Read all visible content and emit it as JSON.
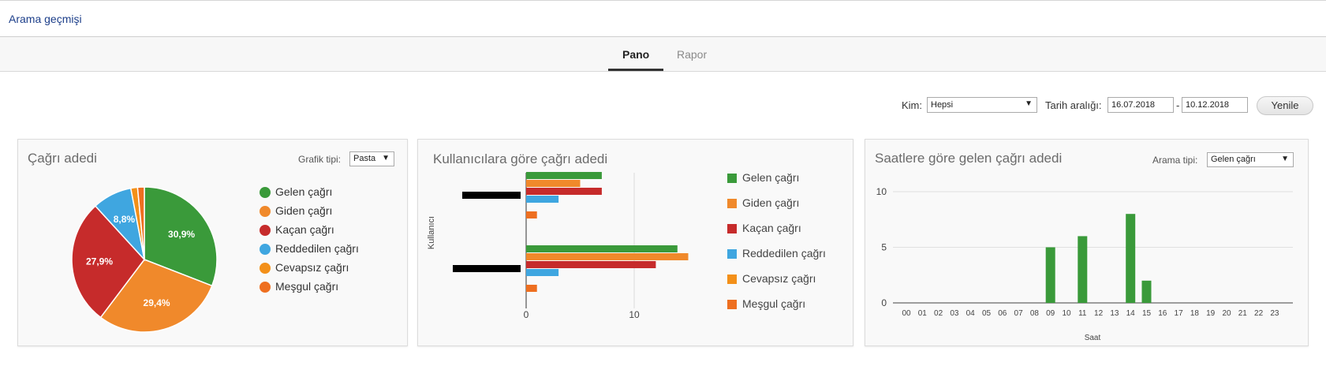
{
  "header": {
    "title": "Arama geçmişi"
  },
  "tabs": [
    {
      "label": "Pano",
      "active": true
    },
    {
      "label": "Rapor",
      "active": false
    }
  ],
  "filters": {
    "who_label": "Kim:",
    "who_value": "Hepsi",
    "date_label": "Tarih aralığı:",
    "date_from": "16.07.2018",
    "date_sep": "-",
    "date_to": "10.12.2018",
    "refresh_label": "Yenile"
  },
  "colors": {
    "gelen": "#3a9a3a",
    "giden": "#f0892b",
    "kacan": "#c62b2b",
    "reddedilen": "#3fa6e0",
    "cevapsiz": "#f39019",
    "mesgul": "#ee6f20"
  },
  "card1": {
    "title": "Çağrı adedi",
    "chart_type_label": "Grafik tipi:",
    "chart_type_value": "Pasta",
    "legend": [
      "Gelen çağrı",
      "Giden çağrı",
      "Kaçan çağrı",
      "Reddedilen çağrı",
      "Cevapsız çağrı",
      "Meşgul çağrı"
    ]
  },
  "card2": {
    "title": "Kullanıcılara göre çağrı adedi",
    "legend": [
      "Gelen çağrı",
      "Giden çağrı",
      "Kaçan çağrı",
      "Reddedilen çağrı",
      "Cevapsız çağrı",
      "Meşgul çağrı"
    ]
  },
  "card3": {
    "title": "Saatlere göre gelen çağrı adedi",
    "type_label": "Arama tipi:",
    "type_value": "Gelen çağrı"
  },
  "chart_data": [
    {
      "type": "pie",
      "categories": [
        "Gelen çağrı",
        "Giden çağrı",
        "Kaçan çağrı",
        "Reddedilen çağrı",
        "Cevapsız çağrı",
        "Meşgul çağrı"
      ],
      "values": [
        30.9,
        29.4,
        27.9,
        8.8,
        1.5,
        1.5
      ],
      "data_labels": [
        "30,9%",
        "29,4%",
        "27,9%",
        "8,8%",
        "",
        ""
      ],
      "colors": [
        "#3a9a3a",
        "#f0892b",
        "#c62b2b",
        "#3fa6e0",
        "#f39019",
        "#ee6f20"
      ],
      "legend_position": "right"
    },
    {
      "type": "bar",
      "orientation": "horizontal",
      "ylabel": "Kullanıcı",
      "categories": [
        "",
        ""
      ],
      "xlim": [
        0,
        15
      ],
      "xticks": [
        "0",
        "10"
      ],
      "series": [
        {
          "name": "Gelen çağrı",
          "values": [
            7,
            14
          ]
        },
        {
          "name": "Giden çağrı",
          "values": [
            5,
            15
          ]
        },
        {
          "name": "Kaçan çağrı",
          "values": [
            7,
            12
          ]
        },
        {
          "name": "Reddedilen çağrı",
          "values": [
            3,
            3
          ]
        },
        {
          "name": "Cevapsız çağrı",
          "values": [
            0,
            0
          ]
        },
        {
          "name": "Meşgul çağrı",
          "values": [
            1,
            1
          ]
        }
      ],
      "legend_position": "right"
    },
    {
      "type": "bar",
      "xlabel": "Saat",
      "ylim": [
        0,
        10
      ],
      "yticks": [
        "0",
        "5",
        "10"
      ],
      "grid": true,
      "categories": [
        "00",
        "01",
        "02",
        "03",
        "04",
        "05",
        "06",
        "07",
        "08",
        "09",
        "10",
        "11",
        "12",
        "13",
        "14",
        "15",
        "16",
        "17",
        "18",
        "19",
        "20",
        "21",
        "22",
        "23"
      ],
      "values": [
        0,
        0,
        0,
        0,
        0,
        0,
        0,
        0,
        0,
        5,
        0,
        6,
        0,
        0,
        8,
        2,
        0,
        0,
        0,
        0,
        0,
        0,
        0,
        0
      ],
      "color": "#3a9a3a"
    }
  ]
}
